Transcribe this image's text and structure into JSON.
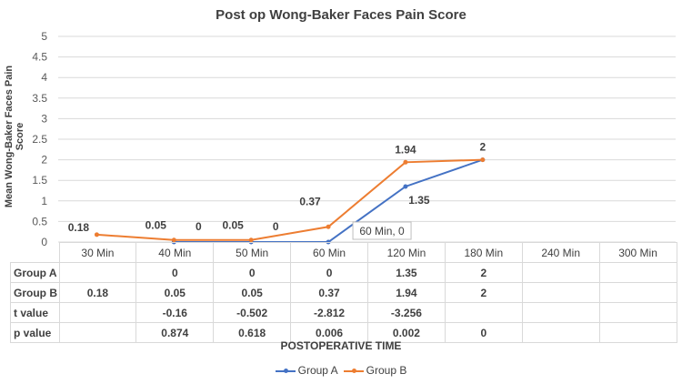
{
  "chart_data": {
    "type": "line",
    "title": "Post op Wong-Baker Faces Pain Score",
    "ylabel": "Mean Wong-Baker Faces Pain Score",
    "xlabel": "POSTOPERATIVE TIME",
    "ylim": [
      0,
      5
    ],
    "yticks": [
      "0",
      "0.5",
      "1",
      "1.5",
      "2",
      "2.5",
      "3",
      "3.5",
      "4",
      "4.5",
      "5"
    ],
    "categories": [
      "30 Min",
      "40 Min",
      "50 Min",
      "60 Min",
      "120 Min",
      "180 Min",
      "240 Min",
      "300 Min"
    ],
    "grid": true,
    "legend": "bottom",
    "series": [
      {
        "name": "Group A",
        "color": "#4472c4",
        "values": [
          null,
          0,
          0,
          0,
          1.35,
          2,
          null,
          null
        ],
        "labels": [
          "",
          "0",
          "0",
          "60 Min, 0",
          "1.35",
          "",
          "",
          ""
        ]
      },
      {
        "name": "Group B",
        "color": "#ed7d31",
        "values": [
          0.18,
          0.05,
          0.05,
          0.37,
          1.94,
          2,
          null,
          null
        ],
        "labels": [
          "0.18",
          "0.05",
          "0.05",
          "0.37",
          "1.94",
          "2",
          "",
          ""
        ]
      }
    ],
    "table": {
      "rows": [
        {
          "label": "Group A",
          "cells": [
            "",
            "0",
            "0",
            "0",
            "1.35",
            "2",
            "",
            ""
          ]
        },
        {
          "label": "Group B",
          "cells": [
            "0.18",
            "0.05",
            "0.05",
            "0.37",
            "1.94",
            "2",
            "",
            ""
          ]
        },
        {
          "label": "t value",
          "cells": [
            "",
            "-0.16",
            "-0.502",
            "-2.812",
            "-3.256",
            "",
            "",
            ""
          ]
        },
        {
          "label": "p value",
          "cells": [
            "",
            "0.874",
            "0.618",
            "0.006",
            "0.002",
            "0",
            "",
            ""
          ]
        }
      ]
    }
  }
}
